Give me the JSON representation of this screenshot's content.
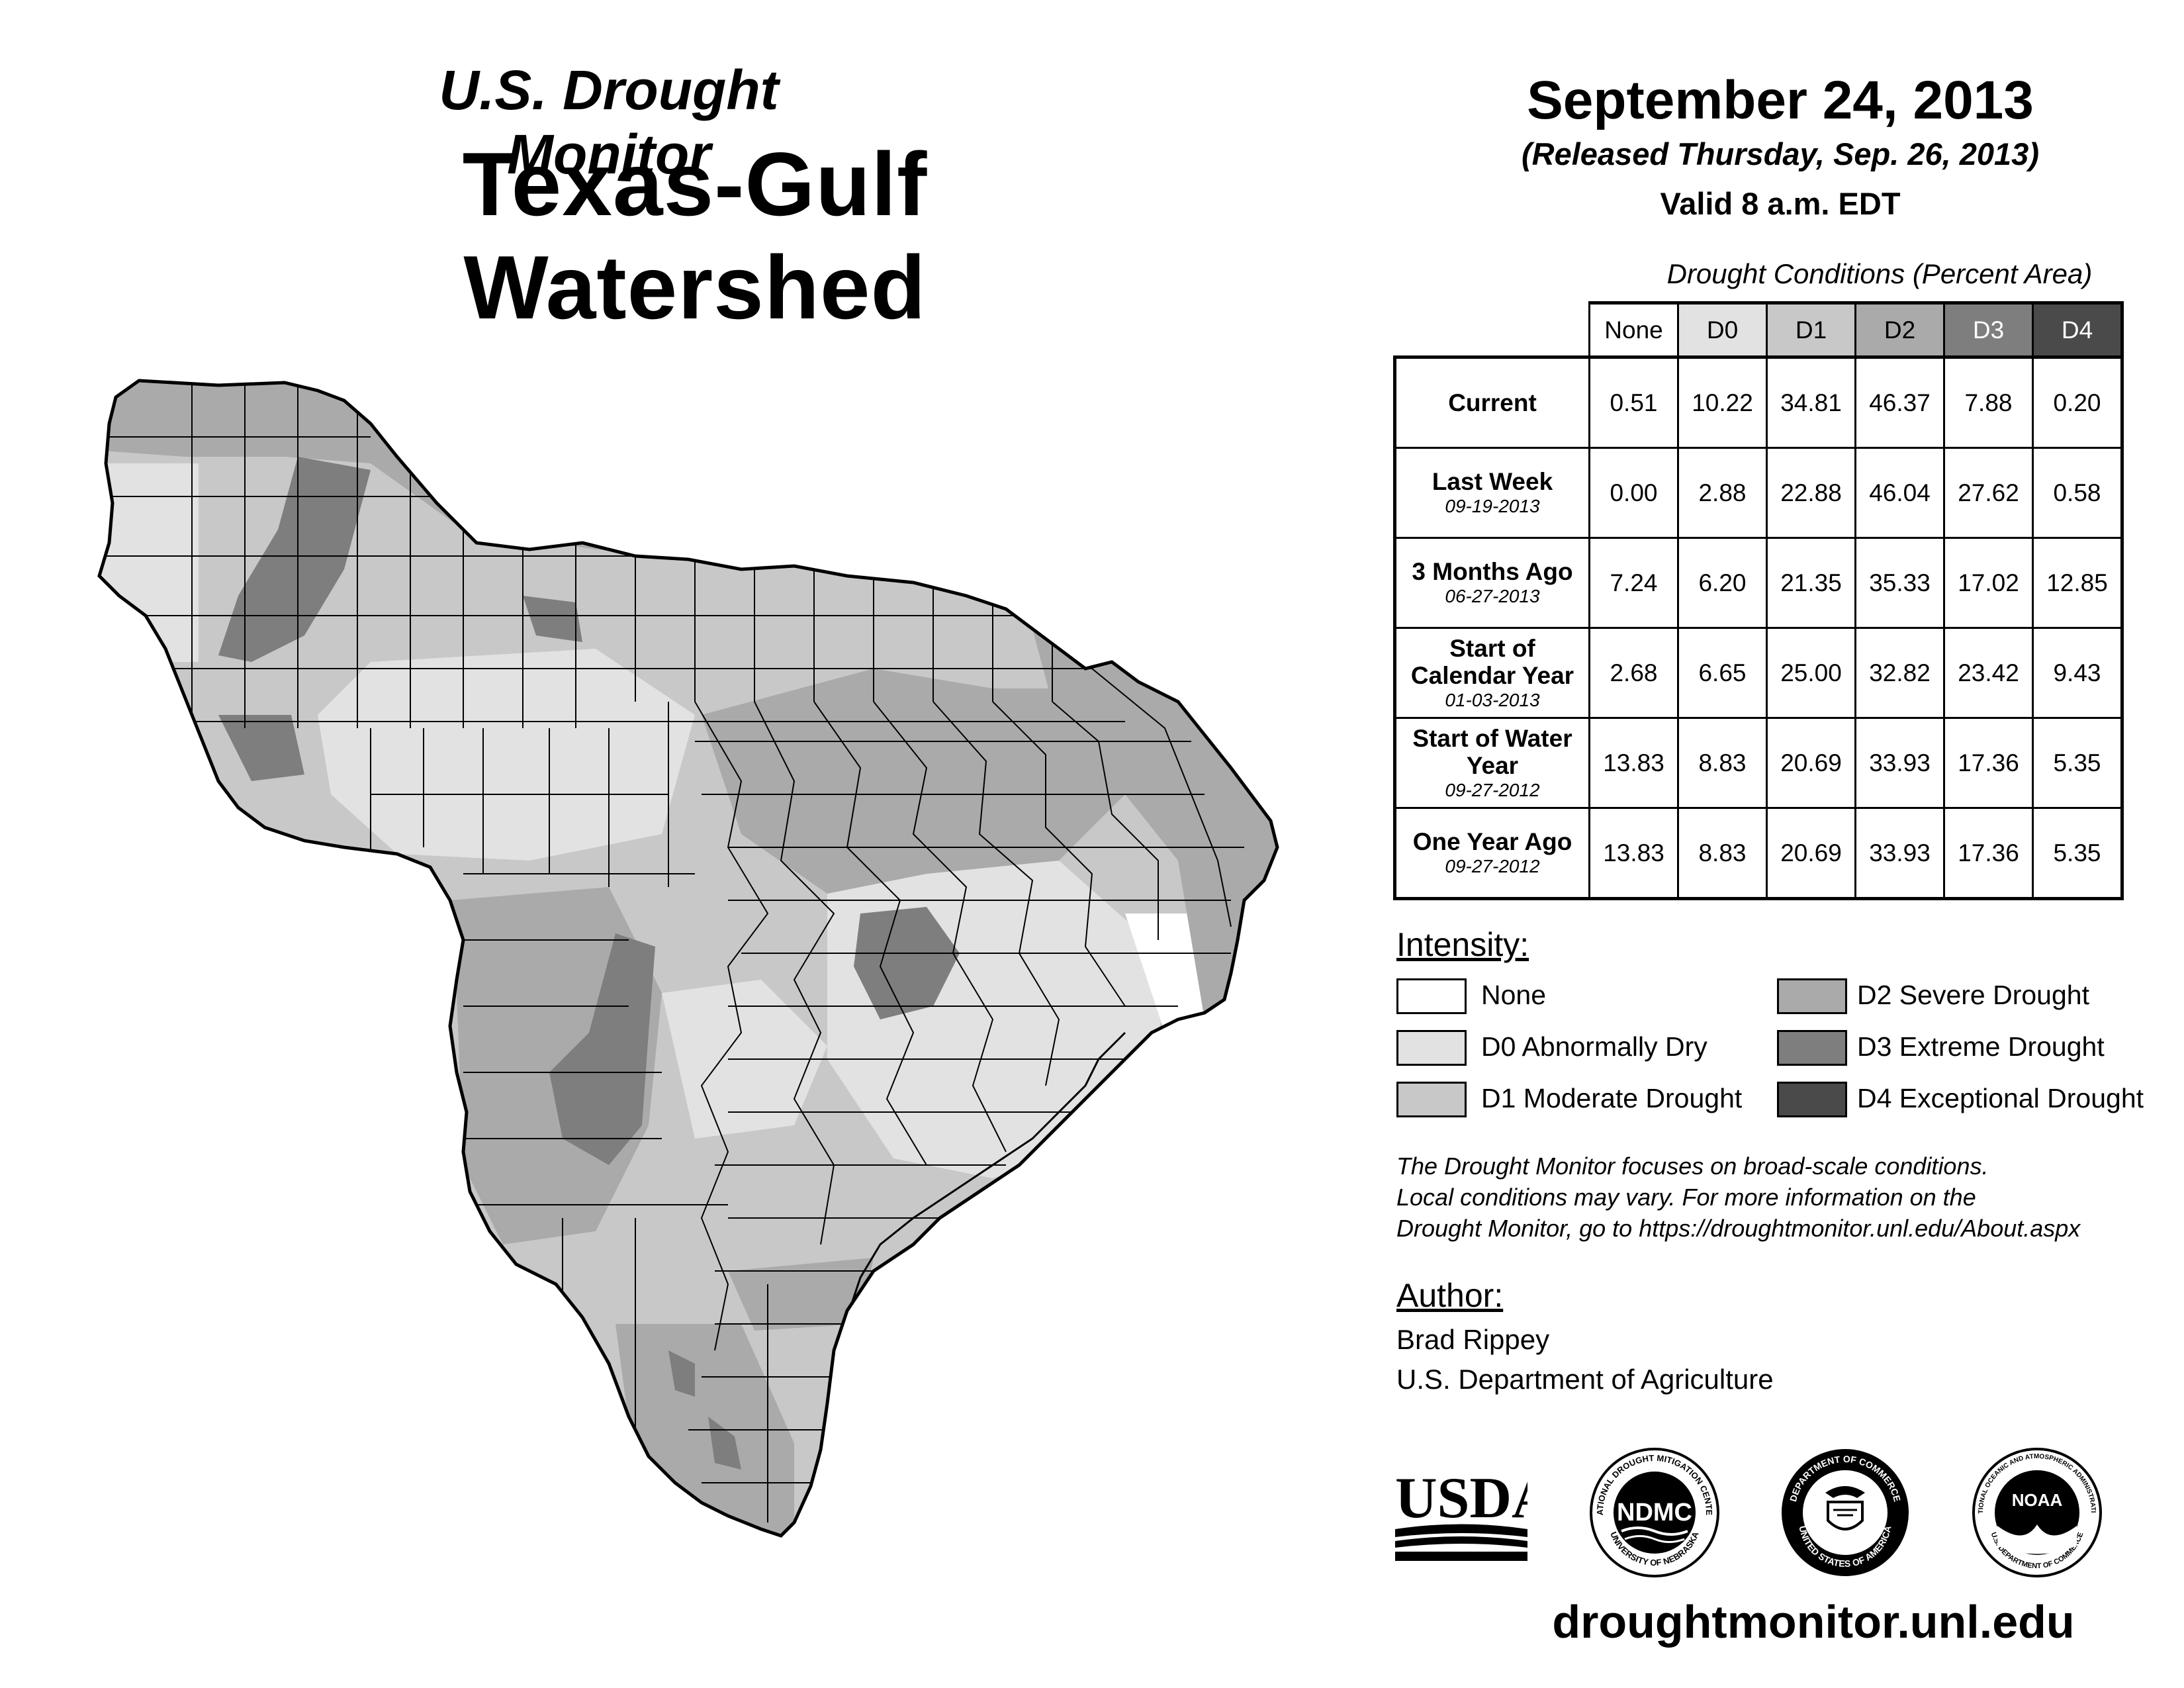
{
  "header": {
    "subtitle": "U.S. Drought Monitor",
    "title": "Texas-Gulf Watershed",
    "date": "September 24, 2013",
    "released": "(Released Thursday, Sep. 26, 2013)",
    "valid": "Valid 8 a.m. EDT"
  },
  "table": {
    "caption": "Drought Conditions (Percent Area)",
    "columns": [
      "None",
      "D0",
      "D1",
      "D2",
      "D3",
      "D4"
    ],
    "rows": [
      {
        "label": "Current",
        "sub": "",
        "values": [
          "0.51",
          "10.22",
          "34.81",
          "46.37",
          "7.88",
          "0.20"
        ]
      },
      {
        "label": "Last Week",
        "sub": "09-19-2013",
        "values": [
          "0.00",
          "2.88",
          "22.88",
          "46.04",
          "27.62",
          "0.58"
        ]
      },
      {
        "label": "3 Months Ago",
        "sub": "06-27-2013",
        "values": [
          "7.24",
          "6.20",
          "21.35",
          "35.33",
          "17.02",
          "12.85"
        ]
      },
      {
        "label": "Start of Calendar Year",
        "sub": "01-03-2013",
        "values": [
          "2.68",
          "6.65",
          "25.00",
          "32.82",
          "23.42",
          "9.43"
        ]
      },
      {
        "label": "Start of Water Year",
        "sub": "09-27-2012",
        "values": [
          "13.83",
          "8.83",
          "20.69",
          "33.93",
          "17.36",
          "5.35"
        ]
      },
      {
        "label": "One Year Ago",
        "sub": "09-27-2012",
        "values": [
          "13.83",
          "8.83",
          "20.69",
          "33.93",
          "17.36",
          "5.35"
        ]
      }
    ]
  },
  "legend": {
    "heading": "Intensity:",
    "items": [
      {
        "label": "None",
        "color": "#ffffff"
      },
      {
        "label": "D0 Abnormally Dry",
        "color": "#e2e2e2"
      },
      {
        "label": "D1 Moderate Drought",
        "color": "#c8c8c8"
      },
      {
        "label": "D2 Severe Drought",
        "color": "#aaaaaa"
      },
      {
        "label": "D3 Extreme Drought",
        "color": "#7e7e7e"
      },
      {
        "label": "D4 Exceptional Drought",
        "color": "#4a4a4a"
      }
    ]
  },
  "note": [
    "The Drought Monitor focuses on broad-scale conditions.",
    "Local conditions may vary. For more information on the",
    "Drought Monitor, go to https://droughtmonitor.unl.edu/About.aspx"
  ],
  "author": {
    "heading": "Author:",
    "name": "Brad Rippey",
    "org": "U.S. Department of Agriculture"
  },
  "logos": {
    "usda": "USDA",
    "ndmc": "NDMC",
    "ndmc_ring_top": "NATIONAL DROUGHT MITIGATION CENTER",
    "ndmc_ring_bottom": "UNIVERSITY OF NEBRASKA",
    "doc_ring_top": "DEPARTMENT OF COMMERCE",
    "doc_ring_bottom": "UNITED STATES OF AMERICA",
    "noaa": "NOAA",
    "noaa_ring_top": "NATIONAL OCEANIC AND ATMOSPHERIC ADMINISTRATION",
    "noaa_ring_bottom": "U.S. DEPARTMENT OF COMMERCE"
  },
  "website": "droughtmonitor.unl.edu",
  "colors": {
    "none": "#ffffff",
    "d0": "#e2e2e2",
    "d1": "#c8c8c8",
    "d2": "#aaaaaa",
    "d3": "#7e7e7e",
    "d4": "#4a4a4a"
  }
}
